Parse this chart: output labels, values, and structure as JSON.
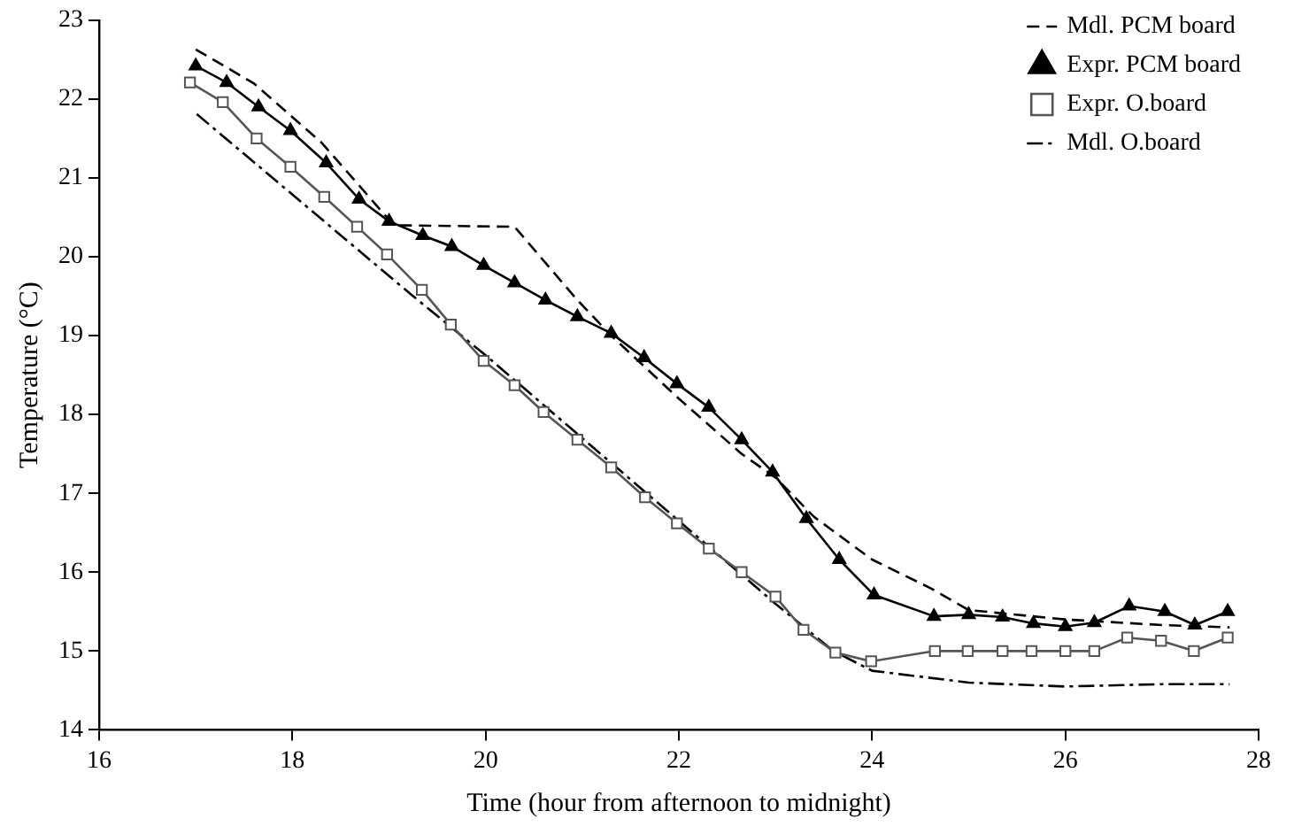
{
  "chart_data": {
    "type": "line",
    "xlabel": "Time (hour from afternoon to midnight)",
    "ylabel": "Temperature (°C)",
    "xlim": [
      16,
      28
    ],
    "xticks": [
      16,
      18,
      20,
      22,
      24,
      26,
      28
    ],
    "ylim": [
      14,
      23
    ],
    "yticks": [
      14,
      15,
      16,
      17,
      18,
      19,
      20,
      21,
      22,
      23
    ],
    "grid": false,
    "legend": "top right",
    "series": [
      {
        "name": "Mdl. PCM board",
        "color": "#000000",
        "line_style": "dashed",
        "marker": "none",
        "x": [
          17.0,
          17.6,
          18.3,
          19.05,
          20.3,
          20.95,
          21.3,
          22.0,
          22.65,
          23.0,
          23.4,
          24.0,
          24.6,
          25.0,
          26.0,
          27.0,
          27.7
        ],
        "values": [
          22.63,
          22.2,
          21.45,
          20.4,
          20.38,
          19.45,
          19.0,
          18.2,
          17.5,
          17.2,
          16.7,
          16.16,
          15.8,
          15.52,
          15.4,
          15.33,
          15.3
        ]
      },
      {
        "name": "Expr. PCM board",
        "color": "#000000",
        "line_style": "solid",
        "marker": "triangle",
        "x": [
          17.0,
          17.32,
          17.65,
          17.98,
          18.35,
          18.69,
          19.0,
          19.35,
          19.65,
          19.98,
          20.3,
          20.62,
          20.95,
          21.3,
          21.64,
          21.98,
          22.31,
          22.65,
          22.97,
          23.32,
          23.66,
          24.02,
          24.64,
          25.0,
          25.35,
          25.67,
          26.0,
          26.3,
          26.66,
          27.03,
          27.34,
          27.68
        ],
        "values": [
          22.42,
          22.21,
          21.9,
          21.6,
          21.19,
          20.73,
          20.45,
          20.27,
          20.13,
          19.89,
          19.67,
          19.45,
          19.24,
          19.03,
          18.72,
          18.39,
          18.09,
          17.68,
          17.27,
          16.68,
          16.16,
          15.71,
          15.44,
          15.46,
          15.43,
          15.35,
          15.31,
          15.36,
          15.57,
          15.5,
          15.33,
          15.5
        ]
      },
      {
        "name": "Expr. O.board",
        "color": "#555555",
        "line_style": "solid",
        "marker": "square",
        "x": [
          16.94,
          17.28,
          17.63,
          17.98,
          18.33,
          18.67,
          18.98,
          19.34,
          19.64,
          19.98,
          20.3,
          20.6,
          20.95,
          21.3,
          21.65,
          21.98,
          22.31,
          22.65,
          23.0,
          23.29,
          23.62,
          23.99,
          24.65,
          24.99,
          25.35,
          25.65,
          26.0,
          26.3,
          26.64,
          26.99,
          27.33,
          27.68
        ],
        "values": [
          22.21,
          21.96,
          21.5,
          21.14,
          20.76,
          20.38,
          20.03,
          19.58,
          19.14,
          18.68,
          18.37,
          18.03,
          17.68,
          17.33,
          16.95,
          16.62,
          16.3,
          16.0,
          15.69,
          15.27,
          14.98,
          14.87,
          15.0,
          15.0,
          15.0,
          15.0,
          15.0,
          15.0,
          15.17,
          15.13,
          15.0,
          15.17
        ]
      },
      {
        "name": "Mdl. O.board",
        "color": "#000000",
        "line_style": "dashdot",
        "marker": "none",
        "x": [
          17.01,
          19.23,
          20.0,
          22.0,
          23.0,
          23.6,
          24.0,
          25.0,
          26.0,
          27.0,
          27.7
        ],
        "values": [
          21.81,
          19.52,
          18.75,
          16.65,
          15.6,
          15.0,
          14.75,
          14.6,
          14.55,
          14.58,
          14.58
        ]
      }
    ]
  }
}
